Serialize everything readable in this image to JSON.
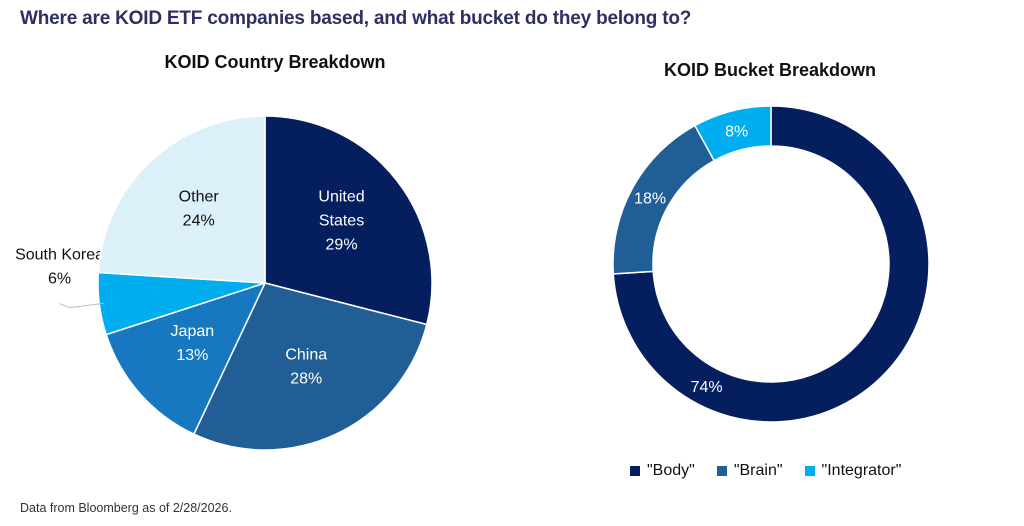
{
  "header": {
    "title": "Where are KOID ETF companies based, and what bucket do they belong to?"
  },
  "footer": {
    "note": "Data from Bloomberg as of 2/28/2026."
  },
  "chart_data": [
    {
      "type": "pie",
      "title": "KOID Country Breakdown",
      "unit": "%",
      "slices": [
        {
          "name": "United States",
          "label_lines": [
            "United",
            "States"
          ],
          "value": 29,
          "value_label": "29%",
          "color": "#041e5e",
          "text_color": "#ffffff"
        },
        {
          "name": "China",
          "label_lines": [
            "China"
          ],
          "value": 28,
          "value_label": "28%",
          "color": "#215e96",
          "text_color": "#ffffff"
        },
        {
          "name": "Japan",
          "label_lines": [
            "Japan"
          ],
          "value": 13,
          "value_label": "13%",
          "color": "#1778c0",
          "text_color": "#ffffff"
        },
        {
          "name": "South Korea",
          "label_lines": [
            "South Korea"
          ],
          "value": 6,
          "value_label": "6%",
          "color": "#00adef",
          "text_color": "#111111",
          "label_outside": true
        },
        {
          "name": "Other",
          "label_lines": [
            "Other"
          ],
          "value": 24,
          "value_label": "24%",
          "color": "#dcf0f9",
          "text_color": "#111111"
        }
      ]
    },
    {
      "type": "pie",
      "subtype": "donut",
      "title": "KOID Bucket Breakdown",
      "unit": "%",
      "slices": [
        {
          "name": "\"Body\"",
          "value": 74,
          "value_label": "74%",
          "color": "#041e5e"
        },
        {
          "name": "\"Brain\"",
          "value": 18,
          "value_label": "18%",
          "color": "#215e96"
        },
        {
          "name": "\"Integrator\"",
          "value": 8,
          "value_label": "8%",
          "color": "#00adef"
        }
      ],
      "legend": {
        "position": "bottom",
        "items": [
          "\"Body\"",
          "\"Brain\"",
          "\"Integrator\""
        ]
      }
    }
  ]
}
